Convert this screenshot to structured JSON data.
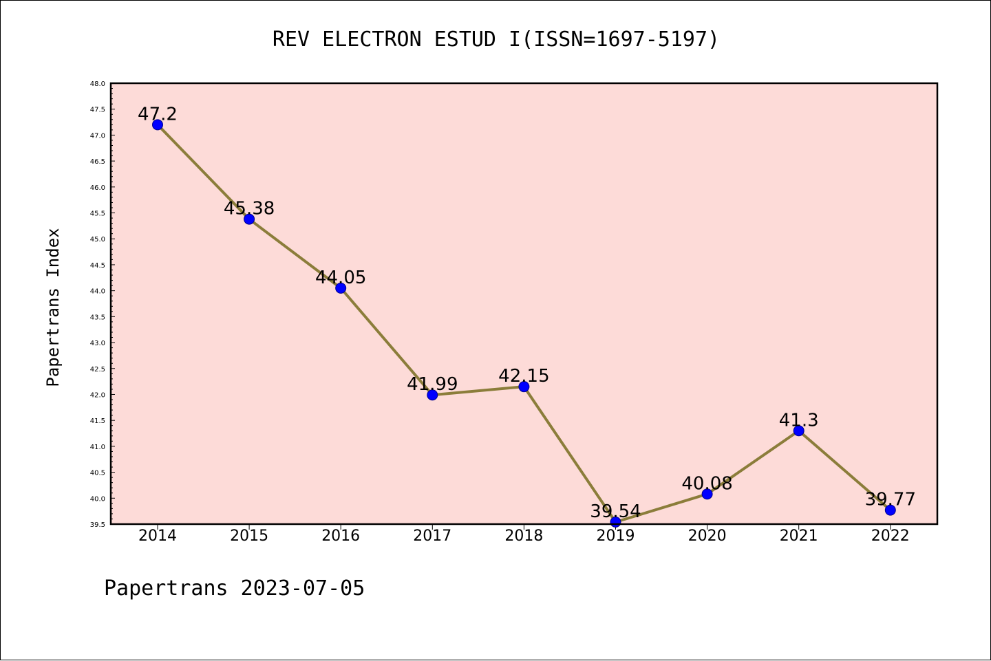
{
  "chart_data": {
    "type": "line",
    "title": "REV ELECTRON ESTUD I(ISSN=1697-5197)",
    "xlabel": "",
    "ylabel": "Papertrans Index",
    "footer": "Papertrans 2023-07-05",
    "categories": [
      "2014",
      "2015",
      "2016",
      "2017",
      "2018",
      "2019",
      "2020",
      "2021",
      "2022"
    ],
    "series": [
      {
        "values": [
          47.2,
          45.38,
          44.05,
          41.99,
          42.15,
          39.54,
          40.08,
          41.3,
          39.77
        ],
        "labels": [
          "47.2",
          "45.38",
          "44.05",
          "41.99",
          "42.15",
          "39.54",
          "40.08",
          "41.3",
          "39.77"
        ]
      }
    ],
    "ylim": [
      39.5,
      48.0
    ],
    "yticks": [
      "39.5",
      "40.0",
      "40.5",
      "41.0",
      "41.5",
      "42.0",
      "42.5",
      "43.0",
      "43.5",
      "44.0",
      "44.5",
      "45.0",
      "45.5",
      "46.0",
      "46.5",
      "47.0",
      "47.5",
      "48.0"
    ],
    "grid": false,
    "colors": {
      "plot_background": "#fddbd8",
      "line": "#8b7d3a",
      "marker": "#0000ff"
    }
  }
}
